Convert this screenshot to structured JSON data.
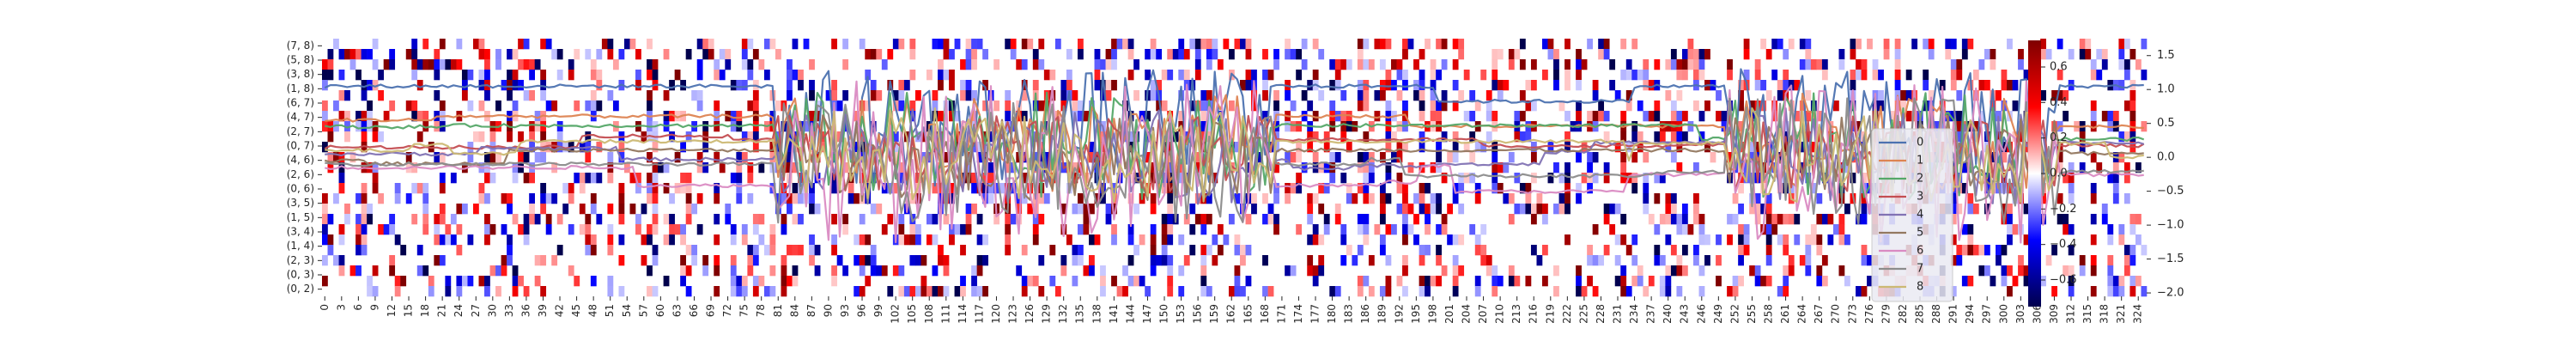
{
  "chart_data": {
    "type": "heatmap",
    "heatmap": {
      "x_tick_labels": [
        "0",
        "3",
        "6",
        "9",
        "12",
        "15",
        "18",
        "21",
        "24",
        "27",
        "30",
        "33",
        "36",
        "39",
        "42",
        "45",
        "48",
        "51",
        "54",
        "57",
        "60",
        "63",
        "66",
        "69",
        "72",
        "75",
        "78",
        "81",
        "84",
        "87",
        "90",
        "93",
        "96",
        "99",
        "102",
        "105",
        "108",
        "111",
        "114",
        "117",
        "120",
        "123",
        "126",
        "129",
        "132",
        "135",
        "138",
        "141",
        "144",
        "147",
        "150",
        "153",
        "156",
        "159",
        "162",
        "165",
        "168",
        "171",
        "174",
        "177",
        "180",
        "183",
        "186",
        "189",
        "192",
        "195",
        "198",
        "201",
        "204",
        "207",
        "210",
        "213",
        "216",
        "219",
        "222",
        "225",
        "228",
        "231",
        "234",
        "237",
        "240",
        "243",
        "246",
        "249",
        "252",
        "255",
        "258",
        "261",
        "264",
        "267",
        "270",
        "273",
        "276",
        "279",
        "282",
        "285",
        "288",
        "291",
        "294",
        "297",
        "300",
        "303",
        "306",
        "309",
        "312",
        "315",
        "318",
        "321",
        "324"
      ],
      "y_tick_labels": [
        "(7, 8)",
        "(5, 8)",
        "(3, 8)",
        "(1, 8)",
        "(6, 7)",
        "(4, 7)",
        "(2, 7)",
        "(0, 7)",
        "(4, 6)",
        "(2, 6)",
        "(0, 6)",
        "(3, 5)",
        "(1, 5)",
        "(3, 4)",
        "(1, 4)",
        "(2, 3)",
        "(0, 3)",
        "(0, 2)"
      ],
      "n_columns": 326,
      "n_rows": 25,
      "colormap": "seismic",
      "cell_density": 0.32,
      "colorbar": {
        "min": -0.75,
        "max": 0.75,
        "ticks": [
          -0.6,
          -0.4,
          -0.2,
          0.0,
          0.2,
          0.4,
          0.6
        ],
        "tick_labels": [
          "−0.6",
          "−0.4",
          "−0.2",
          "0.0",
          "0.2",
          "0.4",
          "0.6"
        ]
      }
    },
    "line_overlay": {
      "type": "line",
      "ylim": [
        -2.05,
        1.75
      ],
      "y_ticks": [
        -2.0,
        -1.5,
        -1.0,
        -0.5,
        0.0,
        0.5,
        1.0,
        1.5
      ],
      "y_tick_labels": [
        "−2.0",
        "−1.5",
        "−1.0",
        "−0.5",
        "0.0",
        "0.5",
        "1.0",
        "1.5"
      ],
      "legend_position": "right",
      "series": [
        {
          "name": "0",
          "color": "#4c72b0",
          "base": 1.05,
          "amp": 0.55
        },
        {
          "name": "1",
          "color": "#dd8452",
          "base": 0.55,
          "amp": 0.45
        },
        {
          "name": "2",
          "color": "#55a868",
          "base": 0.45,
          "amp": 0.5
        },
        {
          "name": "3",
          "color": "#c44e52",
          "base": 0.15,
          "amp": 0.35
        },
        {
          "name": "4",
          "color": "#8172b3",
          "base": 0.05,
          "amp": 0.45
        },
        {
          "name": "5",
          "color": "#937860",
          "base": -0.05,
          "amp": 0.4
        },
        {
          "name": "6",
          "color": "#da8bc3",
          "base": -0.15,
          "amp": 0.75
        },
        {
          "name": "7",
          "color": "#8c8c8c",
          "base": -0.1,
          "amp": 0.6
        },
        {
          "name": "8",
          "color": "#ccb974",
          "base": 0.1,
          "amp": 0.45
        }
      ]
    }
  }
}
